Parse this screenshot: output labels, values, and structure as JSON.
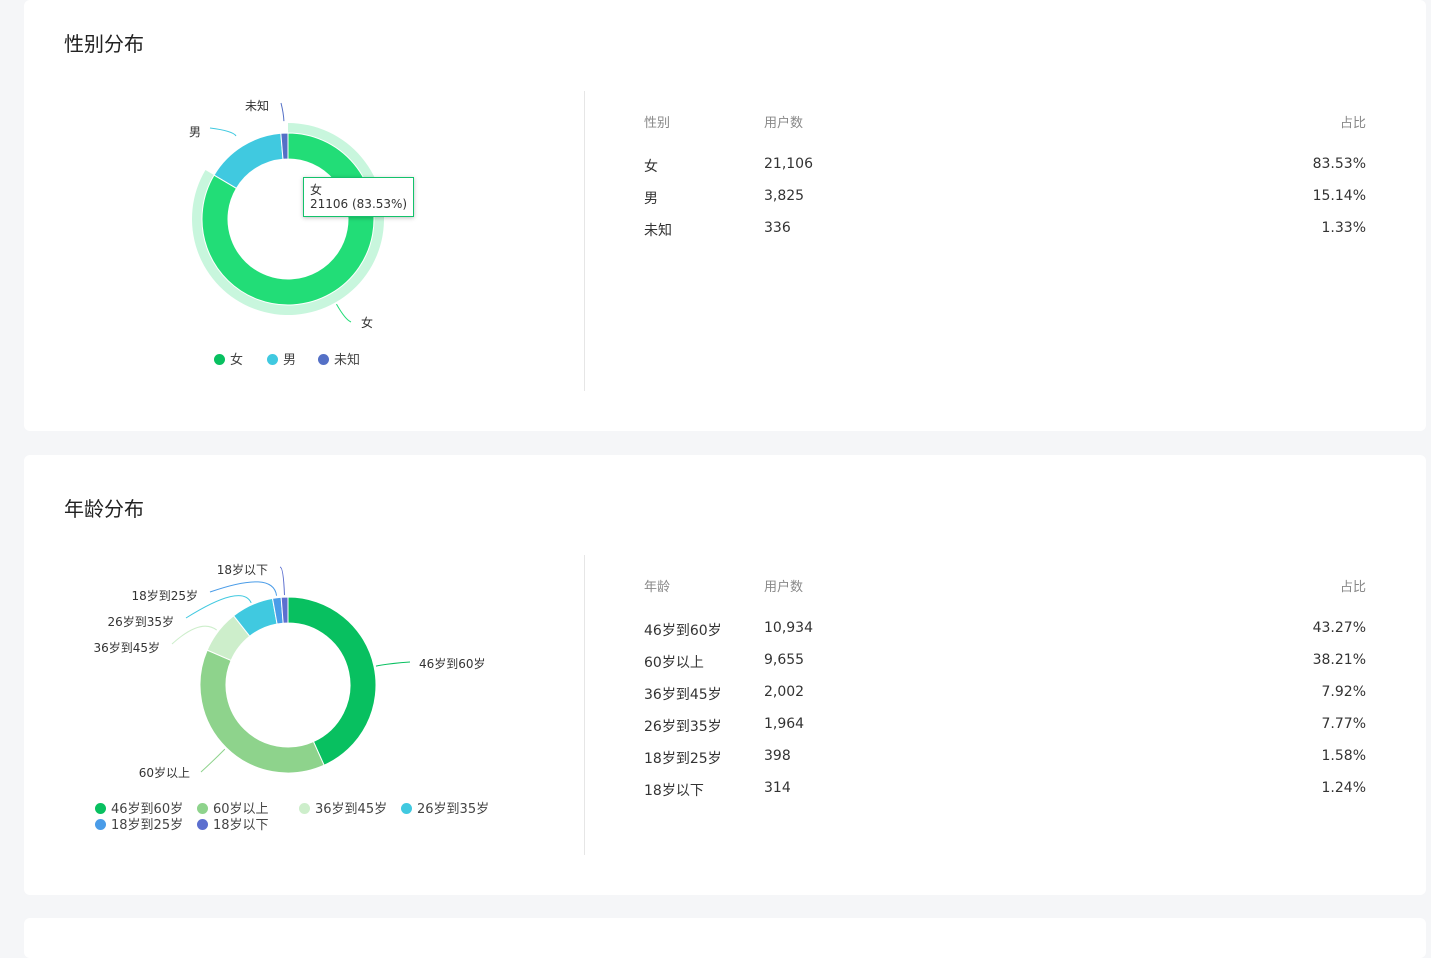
{
  "gender": {
    "title": "性别分布",
    "table_header": {
      "col1": "性别",
      "col2": "用户数",
      "col3": "占比"
    },
    "rows": [
      {
        "name": "女",
        "users": "21,106",
        "pct": "83.53%"
      },
      {
        "name": "男",
        "users": "3,825",
        "pct": "15.14%"
      },
      {
        "name": "未知",
        "users": "336",
        "pct": "1.33%"
      }
    ],
    "tooltip": {
      "name": "女",
      "value": "21106 (83.53%)"
    }
  },
  "age": {
    "title": "年龄分布",
    "table_header": {
      "col1": "年龄",
      "col2": "用户数",
      "col3": "占比"
    },
    "rows": [
      {
        "name": "46岁到60岁",
        "users": "10,934",
        "pct": "43.27%"
      },
      {
        "name": "60岁以上",
        "users": "9,655",
        "pct": "38.21%"
      },
      {
        "name": "36岁到45岁",
        "users": "2,002",
        "pct": "7.92%"
      },
      {
        "name": "26岁到35岁",
        "users": "1,964",
        "pct": "7.77%"
      },
      {
        "name": "18岁到25岁",
        "users": "398",
        "pct": "1.58%"
      },
      {
        "name": "18岁以下",
        "users": "314",
        "pct": "1.24%"
      }
    ]
  },
  "chart_data": [
    {
      "type": "pie",
      "categories": [
        "女",
        "男",
        "未知"
      ],
      "values": [
        21106,
        3825,
        336
      ],
      "colors": [
        "#22dd77",
        "#40c9e0",
        "#5470c6"
      ],
      "highlighted": "女",
      "legend": [
        "女",
        "男",
        "未知"
      ],
      "legend_colors": [
        "#08c060",
        "#40c9e0",
        "#5470c6"
      ]
    },
    {
      "type": "pie",
      "categories": [
        "46岁到60岁",
        "60岁以上",
        "36岁到45岁",
        "26岁到35岁",
        "18岁到25岁",
        "18岁以下"
      ],
      "values": [
        10934,
        9655,
        2002,
        1964,
        398,
        314
      ],
      "colors": [
        "#08c060",
        "#8ed38c",
        "#cdeecb",
        "#40c9e0",
        "#4a9ce8",
        "#5c6fcf"
      ],
      "legend": [
        "46岁到60岁",
        "60岁以上",
        "36岁到45岁",
        "26岁到35岁",
        "18岁到25岁",
        "18岁以下"
      ]
    }
  ]
}
